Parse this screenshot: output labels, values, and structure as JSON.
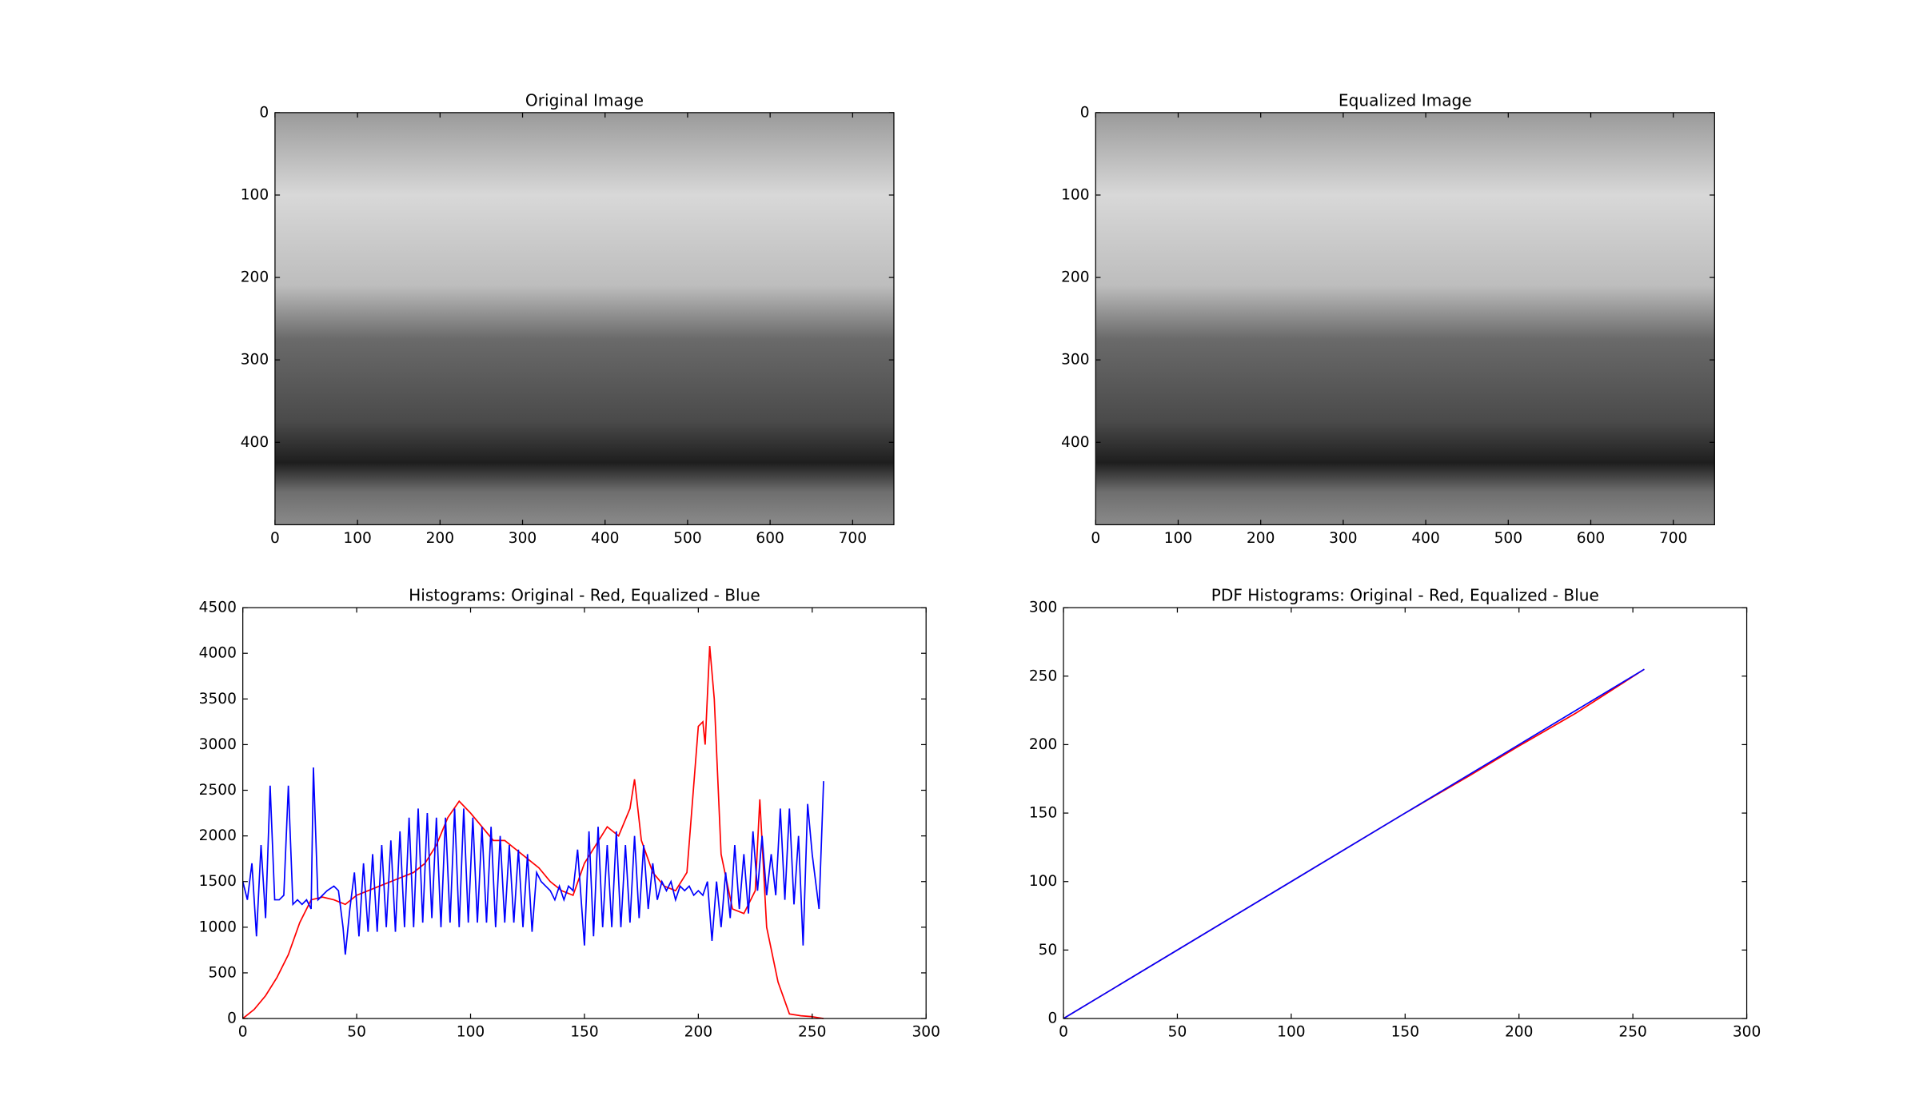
{
  "chart_data": [
    {
      "type": "image",
      "title": "Original Image",
      "xlim": [
        0,
        750
      ],
      "ylim": [
        500,
        0
      ],
      "xticks": [
        0,
        100,
        200,
        300,
        400,
        500,
        600,
        700
      ],
      "yticks": [
        0,
        100,
        200,
        300,
        400
      ]
    },
    {
      "type": "image",
      "title": "Equalized Image",
      "xlim": [
        0,
        750
      ],
      "ylim": [
        500,
        0
      ],
      "xticks": [
        0,
        100,
        200,
        300,
        400,
        500,
        600,
        700
      ],
      "yticks": [
        0,
        100,
        200,
        300,
        400
      ]
    },
    {
      "type": "line",
      "title": "Histograms: Original - Red, Equalized - Blue",
      "xlim": [
        0,
        300
      ],
      "ylim": [
        0,
        4500
      ],
      "xticks": [
        0,
        50,
        100,
        150,
        200,
        250,
        300
      ],
      "yticks": [
        0,
        500,
        1000,
        1500,
        2000,
        2500,
        3000,
        3500,
        4000,
        4500
      ],
      "series": [
        {
          "color": "#ff0000",
          "x": [
            0,
            5,
            10,
            15,
            20,
            25,
            30,
            35,
            40,
            45,
            50,
            55,
            60,
            65,
            70,
            75,
            80,
            85,
            90,
            95,
            100,
            105,
            110,
            115,
            120,
            125,
            130,
            135,
            140,
            145,
            150,
            155,
            160,
            165,
            170,
            172,
            175,
            180,
            185,
            190,
            195,
            200,
            202,
            203,
            205,
            207,
            210,
            215,
            220,
            225,
            227,
            230,
            235,
            240,
            245,
            250,
            255
          ],
          "values": [
            0,
            100,
            250,
            450,
            700,
            1050,
            1300,
            1330,
            1300,
            1250,
            1350,
            1400,
            1450,
            1500,
            1550,
            1600,
            1700,
            1900,
            2200,
            2380,
            2250,
            2100,
            1950,
            1950,
            1850,
            1750,
            1650,
            1500,
            1400,
            1350,
            1700,
            1900,
            2100,
            2000,
            2300,
            2620,
            1950,
            1600,
            1450,
            1400,
            1600,
            3200,
            3250,
            3000,
            4080,
            3500,
            1800,
            1200,
            1150,
            1400,
            2400,
            1000,
            400,
            50,
            30,
            20,
            0
          ]
        },
        {
          "color": "#0000ff",
          "x": [
            0,
            2,
            4,
            6,
            8,
            10,
            12,
            14,
            16,
            18,
            20,
            22,
            24,
            26,
            28,
            30,
            31,
            33,
            35,
            37,
            40,
            42,
            44,
            45,
            47,
            49,
            51,
            53,
            55,
            57,
            59,
            61,
            63,
            65,
            67,
            69,
            71,
            73,
            75,
            77,
            79,
            81,
            83,
            85,
            87,
            89,
            91,
            93,
            95,
            97,
            99,
            101,
            103,
            105,
            107,
            109,
            111,
            113,
            115,
            117,
            119,
            121,
            123,
            125,
            127,
            129,
            131,
            133,
            135,
            137,
            139,
            141,
            143,
            145,
            147,
            150,
            152,
            154,
            156,
            158,
            160,
            162,
            164,
            166,
            168,
            170,
            172,
            174,
            176,
            178,
            180,
            182,
            184,
            186,
            188,
            190,
            192,
            194,
            196,
            198,
            200,
            202,
            204,
            206,
            208,
            210,
            212,
            214,
            216,
            218,
            220,
            222,
            224,
            226,
            228,
            230,
            232,
            234,
            236,
            238,
            240,
            242,
            244,
            246,
            248,
            250,
            253,
            255
          ],
          "values": [
            1500,
            1300,
            1700,
            900,
            1900,
            1100,
            2550,
            1300,
            1300,
            1350,
            2550,
            1250,
            1300,
            1250,
            1300,
            1200,
            2750,
            1300,
            1350,
            1400,
            1450,
            1400,
            1000,
            700,
            1200,
            1600,
            900,
            1700,
            950,
            1800,
            950,
            1900,
            1000,
            1950,
            950,
            2050,
            1000,
            2200,
            1000,
            2300,
            1050,
            2250,
            1100,
            2200,
            1000,
            2200,
            1050,
            2300,
            1000,
            2300,
            1050,
            2200,
            1050,
            2100,
            1050,
            2100,
            1000,
            2000,
            1050,
            1900,
            1050,
            1850,
            1000,
            1800,
            950,
            1600,
            1500,
            1450,
            1400,
            1300,
            1450,
            1300,
            1450,
            1400,
            1850,
            800,
            2050,
            900,
            2100,
            1000,
            1900,
            1000,
            2050,
            1000,
            1900,
            1050,
            2000,
            1100,
            1900,
            1200,
            1700,
            1300,
            1500,
            1400,
            1500,
            1300,
            1450,
            1400,
            1450,
            1350,
            1400,
            1350,
            1500,
            850,
            1500,
            1000,
            1600,
            1100,
            1900,
            1200,
            1800,
            1150,
            2050,
            1400,
            2000,
            1350,
            1800,
            1350,
            2300,
            1300,
            2300,
            1250,
            2000,
            800,
            2350,
            1800,
            1200,
            2600
          ]
        }
      ]
    },
    {
      "type": "line",
      "title": "PDF Histograms: Original - Red, Equalized - Blue",
      "xlim": [
        0,
        300
      ],
      "ylim": [
        0,
        300
      ],
      "xticks": [
        0,
        50,
        100,
        150,
        200,
        250,
        300
      ],
      "yticks": [
        0,
        50,
        100,
        150,
        200,
        250,
        300
      ],
      "series": [
        {
          "color": "#ff0000",
          "x": [
            0,
            50,
            100,
            150,
            178,
            200,
            225,
            255
          ],
          "values": [
            0,
            50,
            100,
            150,
            177,
            199,
            223,
            255
          ]
        },
        {
          "color": "#0000ff",
          "x": [
            0,
            50,
            100,
            150,
            200,
            255
          ],
          "values": [
            0,
            50,
            100,
            150,
            200,
            255
          ]
        }
      ]
    }
  ]
}
